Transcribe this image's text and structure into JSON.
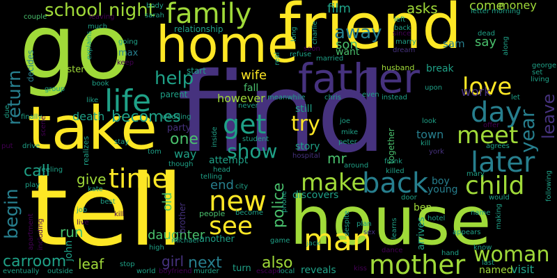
{
  "background": "#000000",
  "palette": {
    "yellow": "#fde725",
    "lime": "#a0da39",
    "green": "#4ac16d",
    "teal": "#1fa187",
    "cyan": "#277f8e",
    "blue": "#365c8d",
    "indigo": "#46327e",
    "purple": "#440154"
  },
  "words": [
    {
      "id": "go",
      "text": "go",
      "color": "lime"
    },
    {
      "id": "find",
      "text": "find",
      "color": "indigo"
    },
    {
      "id": "tell",
      "text": "tell",
      "color": "yellow"
    },
    {
      "id": "house",
      "text": "house",
      "color": "lime"
    },
    {
      "id": "friend",
      "text": "friend",
      "color": "yellow"
    },
    {
      "id": "take",
      "text": "take",
      "color": "yellow"
    },
    {
      "id": "home",
      "text": "home",
      "color": "yellow"
    },
    {
      "id": "father",
      "text": "father",
      "color": "indigo"
    },
    {
      "id": "family",
      "text": "family",
      "color": "lime"
    },
    {
      "id": "school",
      "text": "school",
      "color": "lime"
    },
    {
      "id": "night",
      "text": "night",
      "color": "lime"
    },
    {
      "id": "life",
      "text": "life",
      "color": "teal"
    },
    {
      "id": "get",
      "text": "get",
      "color": "teal"
    },
    {
      "id": "try",
      "text": "try",
      "color": "yellow"
    },
    {
      "id": "love",
      "text": "love",
      "color": "yellow"
    },
    {
      "id": "day",
      "text": "day",
      "color": "cyan"
    },
    {
      "id": "meet",
      "text": "meet",
      "color": "lime"
    },
    {
      "id": "later",
      "text": "later",
      "color": "cyan"
    },
    {
      "id": "child",
      "text": "child",
      "color": "lime"
    },
    {
      "id": "back",
      "text": "back",
      "color": "cyan"
    },
    {
      "id": "make",
      "text": "make",
      "color": "lime"
    },
    {
      "id": "time",
      "text": "time",
      "color": "yellow"
    },
    {
      "id": "new",
      "text": "new",
      "color": "yellow"
    },
    {
      "id": "see",
      "text": "see",
      "color": "yellow"
    },
    {
      "id": "man",
      "text": "man",
      "color": "yellow"
    },
    {
      "id": "mother",
      "text": "mother",
      "color": "lime"
    },
    {
      "id": "woman",
      "text": "woman",
      "color": "lime"
    },
    {
      "id": "show",
      "text": "show",
      "color": "teal"
    },
    {
      "id": "one",
      "text": "one",
      "color": "green"
    },
    {
      "id": "becomes",
      "text": "becomes",
      "color": "teal"
    },
    {
      "id": "help",
      "text": "help",
      "color": "teal"
    },
    {
      "id": "away",
      "text": "away",
      "color": "cyan"
    },
    {
      "id": "son",
      "text": "son",
      "color": "green"
    },
    {
      "id": "want",
      "text": "want",
      "color": "green"
    },
    {
      "id": "film",
      "text": "film",
      "color": "teal"
    },
    {
      "id": "asks",
      "text": "asks",
      "color": "lime"
    },
    {
      "id": "come",
      "text": "come",
      "color": "lime"
    },
    {
      "id": "money",
      "text": "money",
      "color": "lime"
    },
    {
      "id": "say",
      "text": "say",
      "color": "green"
    },
    {
      "id": "sam",
      "text": "sam",
      "color": "cyan"
    },
    {
      "id": "work",
      "text": "work",
      "color": "indigo"
    },
    {
      "id": "return",
      "text": "return",
      "color": "cyan"
    },
    {
      "id": "begin",
      "text": "begin",
      "color": "cyan"
    },
    {
      "id": "call",
      "text": "call",
      "color": "teal"
    },
    {
      "id": "give",
      "text": "give",
      "color": "lime"
    },
    {
      "id": "run",
      "text": "run",
      "color": "green"
    },
    {
      "id": "old",
      "text": "old",
      "color": "green"
    },
    {
      "id": "end",
      "text": "end",
      "color": "cyan"
    },
    {
      "id": "next",
      "text": "next",
      "color": "cyan"
    },
    {
      "id": "also",
      "text": "also",
      "color": "lime"
    },
    {
      "id": "girl",
      "text": "girl",
      "color": "indigo"
    },
    {
      "id": "leaf",
      "text": "leaf",
      "color": "lime"
    },
    {
      "id": "carroom",
      "text": "carroom",
      "color": "teal"
    },
    {
      "id": "police",
      "text": "police",
      "color": "green"
    },
    {
      "id": "death",
      "text": "death",
      "color": "teal"
    },
    {
      "id": "daughter",
      "text": "daughter",
      "color": "green"
    },
    {
      "id": "year",
      "text": "year",
      "color": "cyan"
    },
    {
      "id": "leave",
      "text": "leave",
      "color": "indigo"
    },
    {
      "id": "mr",
      "text": "mr",
      "color": "green"
    },
    {
      "id": "story",
      "text": "story",
      "color": "teal"
    },
    {
      "id": "still",
      "text": "still",
      "color": "teal"
    },
    {
      "id": "wife",
      "text": "wife",
      "color": "yellow"
    },
    {
      "id": "fall",
      "text": "fall",
      "color": "green"
    },
    {
      "id": "however",
      "text": "however",
      "color": "lime"
    },
    {
      "id": "relationship",
      "text": "relationship",
      "color": "teal"
    },
    {
      "id": "sister",
      "text": "sister",
      "color": "lime"
    },
    {
      "id": "max",
      "text": "max",
      "color": "cyan"
    },
    {
      "id": "party",
      "text": "party",
      "color": "indigo"
    },
    {
      "id": "way",
      "text": "way",
      "color": "teal"
    },
    {
      "id": "attempt",
      "text": "attempt",
      "color": "teal"
    },
    {
      "id": "town",
      "text": "town",
      "color": "cyan"
    },
    {
      "id": "boy",
      "text": "boy",
      "color": "cyan"
    },
    {
      "id": "young",
      "text": "young",
      "color": "cyan"
    },
    {
      "id": "discovers",
      "text": "discovers",
      "color": "teal"
    },
    {
      "id": "break",
      "text": "break",
      "color": "teal"
    },
    {
      "id": "start",
      "text": "start",
      "color": "teal"
    },
    {
      "id": "parent",
      "text": "parent",
      "color": "teal"
    },
    {
      "id": "ben",
      "text": "ben",
      "color": "lime"
    },
    {
      "id": "visit",
      "text": "visit",
      "color": "teal"
    },
    {
      "id": "named",
      "text": "named",
      "color": "lime"
    },
    {
      "id": "reveals",
      "text": "reveals",
      "color": "teal"
    },
    {
      "id": "turn",
      "text": "turn",
      "color": "teal"
    },
    {
      "id": "another",
      "text": "another",
      "color": "teal"
    },
    {
      "id": "people",
      "text": "people",
      "color": "green"
    },
    {
      "id": "john",
      "text": "john",
      "color": "teal"
    },
    {
      "id": "arrives",
      "text": "arrives",
      "color": "teal"
    },
    {
      "id": "husband",
      "text": "husband",
      "color": "lime"
    },
    {
      "id": "together",
      "text": "together",
      "color": "green"
    },
    {
      "id": "decides",
      "text": "decides",
      "color": "cyan"
    },
    {
      "id": "couple",
      "text": "couple",
      "color": "green"
    },
    {
      "id": "leaving",
      "text": "leaving",
      "color": "purple"
    },
    {
      "id": "body",
      "text": "body",
      "color": "teal"
    },
    {
      "id": "sarah",
      "text": "sarah",
      "color": "teal"
    },
    {
      "id": "letter",
      "text": "letter",
      "color": "teal"
    },
    {
      "id": "morning",
      "text": "morning",
      "color": "teal"
    },
    {
      "id": "left",
      "text": "left",
      "color": "teal"
    },
    {
      "id": "back2",
      "text": "back",
      "color": "teal"
    },
    {
      "id": "since",
      "text": "since",
      "color": "purple"
    },
    {
      "id": "marry",
      "text": "marry",
      "color": "teal"
    },
    {
      "id": "married",
      "text": "married",
      "color": "teal"
    },
    {
      "id": "refuse",
      "text": "refuse",
      "color": "teal"
    },
    {
      "id": "soon",
      "text": "soon",
      "color": "purple"
    },
    {
      "id": "dream",
      "text": "dream",
      "color": "indigo"
    },
    {
      "id": "dead",
      "text": "dead",
      "color": "teal"
    },
    {
      "id": "set",
      "text": "set",
      "color": "teal"
    },
    {
      "id": "living",
      "text": "living",
      "color": "teal"
    },
    {
      "id": "george",
      "text": "george",
      "color": "teal"
    },
    {
      "id": "let",
      "text": "let",
      "color": "teal"
    },
    {
      "id": "meanwhile",
      "text": "meanwhile",
      "color": "teal"
    },
    {
      "id": "chris",
      "text": "chris",
      "color": "teal"
    },
    {
      "id": "even",
      "text": "even",
      "color": "teal"
    },
    {
      "id": "instead",
      "text": "instead",
      "color": "teal"
    },
    {
      "id": "upon",
      "text": "upon",
      "color": "teal"
    },
    {
      "id": "joe",
      "text": "joe",
      "color": "teal"
    },
    {
      "id": "mike",
      "text": "mike",
      "color": "teal"
    },
    {
      "id": "peter",
      "text": "peter",
      "color": "teal"
    },
    {
      "id": "look",
      "text": "look",
      "color": "teal"
    },
    {
      "id": "kill",
      "text": "kill",
      "color": "teal"
    },
    {
      "id": "york",
      "text": "york",
      "color": "indigo"
    },
    {
      "id": "offer",
      "text": "offer",
      "color": "purple"
    },
    {
      "id": "agrees",
      "text": "agrees",
      "color": "teal"
    },
    {
      "id": "frank",
      "text": "frank",
      "color": "teal"
    },
    {
      "id": "killed",
      "text": "killed",
      "color": "teal"
    },
    {
      "id": "around",
      "text": "around",
      "color": "teal"
    },
    {
      "id": "mary",
      "text": "mary",
      "color": "teal"
    },
    {
      "id": "following",
      "text": "following",
      "color": "teal"
    },
    {
      "id": "would",
      "text": "would",
      "color": "teal"
    },
    {
      "id": "name",
      "text": "name",
      "color": "teal"
    },
    {
      "id": "making",
      "text": "making",
      "color": "teal"
    },
    {
      "id": "hotel",
      "text": "hotel",
      "color": "teal"
    },
    {
      "id": "appears",
      "text": "appears",
      "color": "teal"
    },
    {
      "id": "hand",
      "text": "hand",
      "color": "teal"
    },
    {
      "id": "know",
      "text": "know",
      "color": "teal"
    },
    {
      "id": "last",
      "text": "last",
      "color": "teal"
    },
    {
      "id": "dance",
      "text": "dance",
      "color": "purple"
    },
    {
      "id": "learns",
      "text": "learns",
      "color": "teal"
    },
    {
      "id": "despite",
      "text": "despite",
      "color": "teal"
    },
    {
      "id": "plan",
      "text": "plan",
      "color": "teal"
    },
    {
      "id": "sex",
      "text": "sex",
      "color": "indigo"
    },
    {
      "id": "door",
      "text": "door",
      "color": "teal"
    },
    {
      "id": "kiss",
      "text": "kiss",
      "color": "purple"
    },
    {
      "id": "jack",
      "text": "jack",
      "color": "teal"
    },
    {
      "id": "game",
      "text": "game",
      "color": "teal"
    },
    {
      "id": "phone",
      "text": "phone",
      "color": "teal"
    },
    {
      "id": "local",
      "text": "local",
      "color": "teal"
    },
    {
      "id": "escape",
      "text": "escape",
      "color": "purple"
    },
    {
      "id": "murder",
      "text": "murder",
      "color": "teal"
    },
    {
      "id": "boyfriend",
      "text": "boyfriend",
      "color": "purple"
    },
    {
      "id": "world",
      "text": "world",
      "color": "teal"
    },
    {
      "id": "stop",
      "text": "stop",
      "color": "teal"
    },
    {
      "id": "high",
      "text": "high",
      "color": "teal"
    },
    {
      "id": "michael",
      "text": "michael",
      "color": "teal"
    },
    {
      "id": "brother",
      "text": "brother",
      "color": "indigo"
    },
    {
      "id": "become",
      "text": "become",
      "color": "teal"
    },
    {
      "id": "city",
      "text": "city",
      "color": "teal"
    },
    {
      "id": "head",
      "text": "head",
      "color": "teal"
    },
    {
      "id": "telling",
      "text": "telling",
      "color": "teal"
    },
    {
      "id": "though",
      "text": "though",
      "color": "teal"
    },
    {
      "id": "hospital",
      "text": "hospital",
      "color": "indigo"
    },
    {
      "id": "student",
      "text": "student",
      "color": "teal"
    },
    {
      "id": "inside",
      "text": "inside",
      "color": "teal"
    },
    {
      "id": "wedding",
      "text": "wedding",
      "color": "teal"
    },
    {
      "id": "stay",
      "text": "stay",
      "color": "teal"
    },
    {
      "id": "tom",
      "text": "tom",
      "color": "teal"
    },
    {
      "id": "kate",
      "text": "kate",
      "color": "teal"
    },
    {
      "id": "best",
      "text": "best",
      "color": "teal"
    },
    {
      "id": "job",
      "text": "job",
      "color": "teal"
    },
    {
      "id": "kill2",
      "text": "kill",
      "color": "purple"
    },
    {
      "id": "live",
      "text": "live",
      "color": "purple"
    },
    {
      "id": "realizes",
      "text": "realizes",
      "color": "teal"
    },
    {
      "id": "feeling",
      "text": "feeling",
      "color": "teal"
    },
    {
      "id": "play",
      "text": "play",
      "color": "teal"
    },
    {
      "id": "apartment",
      "text": "apartment",
      "color": "purple"
    },
    {
      "id": "including",
      "text": "including",
      "color": "purple"
    },
    {
      "id": "eventually",
      "text": "eventually",
      "color": "teal"
    },
    {
      "id": "outside",
      "text": "outside",
      "color": "teal"
    },
    {
      "id": "finally",
      "text": "finally",
      "color": "teal"
    },
    {
      "id": "drive",
      "text": "drive",
      "color": "teal"
    },
    {
      "id": "put",
      "text": "put",
      "color": "purple"
    },
    {
      "id": "due",
      "text": "due",
      "color": "teal"
    },
    {
      "id": "scene",
      "text": "scene",
      "color": "purple"
    },
    {
      "id": "group",
      "text": "group",
      "color": "teal"
    },
    {
      "id": "book",
      "text": "book",
      "color": "teal"
    },
    {
      "id": "like",
      "text": "like",
      "color": "teal"
    },
    {
      "id": "going",
      "text": "going",
      "color": "teal"
    },
    {
      "id": "keep",
      "text": "keep",
      "color": "purple"
    },
    {
      "id": "explains",
      "text": "explains",
      "color": "teal"
    },
    {
      "id": "much",
      "text": "much",
      "color": "teal"
    },
    {
      "id": "real",
      "text": "real",
      "color": "teal"
    },
    {
      "id": "long",
      "text": "long",
      "color": "teal"
    },
    {
      "id": "charlie",
      "text": "charlie",
      "color": "teal"
    },
    {
      "id": "along",
      "text": "along",
      "color": "teal"
    },
    {
      "id": "never",
      "text": "never",
      "color": "teal"
    }
  ]
}
